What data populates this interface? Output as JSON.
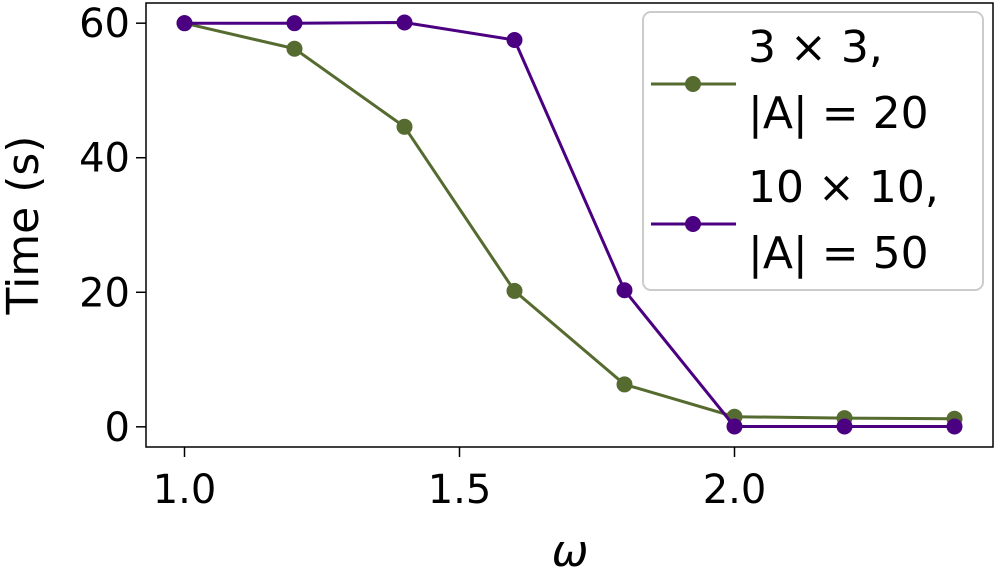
{
  "chart_data": {
    "type": "line",
    "xlabel": "ω",
    "ylabel": "Time (s)",
    "xlim": [
      0.93,
      2.47
    ],
    "ylim": [
      -3,
      63
    ],
    "xticks": [
      1.0,
      1.5,
      2.0
    ],
    "xtick_labels": [
      "1.0",
      "1.5",
      "2.0"
    ],
    "yticks": [
      0,
      20,
      40,
      60
    ],
    "ytick_labels": [
      "0",
      "20",
      "40",
      "60"
    ],
    "grid": false,
    "legend_position": "top-right",
    "x": [
      1.0,
      1.2,
      1.4,
      1.6,
      1.8,
      2.0,
      2.2,
      2.4
    ],
    "series": [
      {
        "name": "3 × 3, |A| = 20",
        "legend_lines": [
          "3 × 3,",
          "|A| = 20"
        ],
        "color": "#556b2f",
        "values": [
          60,
          56.2,
          44.6,
          20.2,
          6.3,
          1.5,
          1.3,
          1.2
        ]
      },
      {
        "name": "10 × 10, |A| = 50",
        "legend_lines": [
          "10 × 10,",
          "|A| = 50"
        ],
        "color": "#4b0082",
        "values": [
          60,
          60,
          60.1,
          57.5,
          20.3,
          0.05,
          0.05,
          0.05
        ]
      }
    ]
  }
}
